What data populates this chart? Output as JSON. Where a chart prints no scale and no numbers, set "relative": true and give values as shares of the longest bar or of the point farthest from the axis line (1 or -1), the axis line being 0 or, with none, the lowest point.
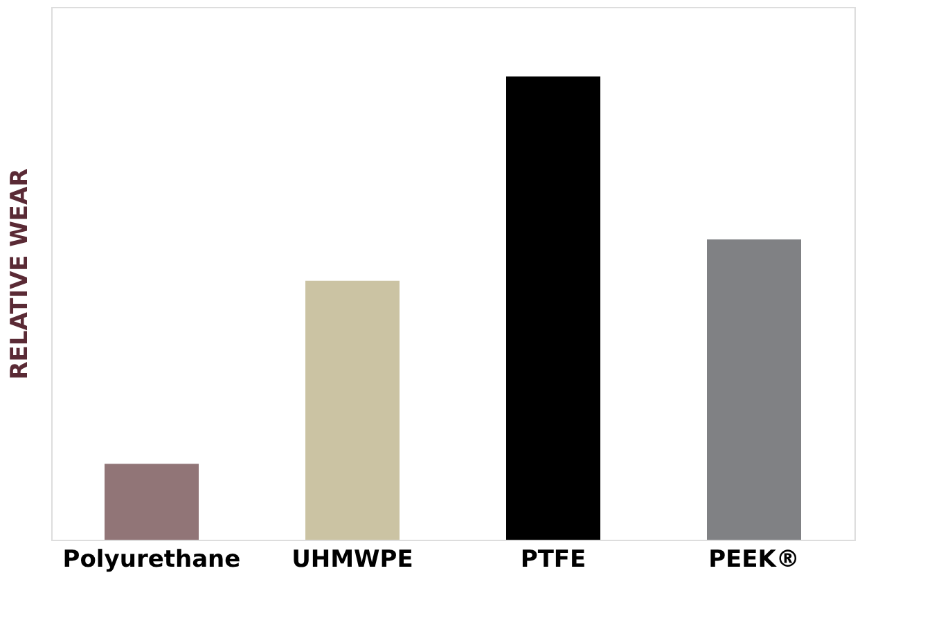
{
  "chart_data": {
    "type": "bar",
    "ylabel": "RELATIVE WEAR",
    "categories": [
      "Polyurethane",
      "UHMWPE",
      "PTFE",
      "PEEK®"
    ],
    "values": [
      0.164,
      0.559,
      1,
      0.648
    ],
    "colors": [
      "#917577",
      "#cbc3a3",
      "#000000",
      "#808184"
    ],
    "relative": true,
    "grid": false
  }
}
